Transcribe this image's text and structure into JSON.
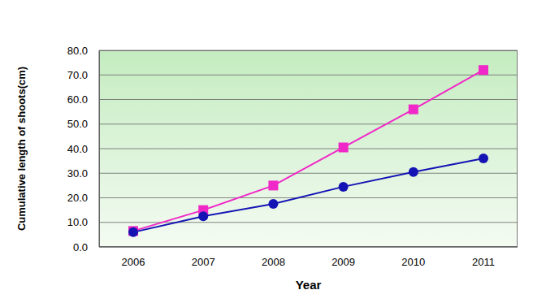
{
  "chart_data": {
    "type": "line",
    "x_label": "Year",
    "y_label": "Cumulative length of shoots(cm)",
    "categories": [
      "2006",
      "2007",
      "2008",
      "2009",
      "2010",
      "2011"
    ],
    "series": [
      {
        "color": "#f028c8",
        "marker": "square",
        "values": [
          6.5,
          15.0,
          25.0,
          40.5,
          56.0,
          72.0
        ]
      },
      {
        "color": "#1414b4",
        "marker": "circle",
        "values": [
          6.0,
          12.5,
          17.5,
          24.5,
          30.5,
          36.0
        ]
      }
    ],
    "ylim": [
      0,
      80
    ],
    "yticks": [
      {
        "value": 0,
        "label": "0.0"
      },
      {
        "value": 10,
        "label": "10.0"
      },
      {
        "value": 20,
        "label": "20.0"
      },
      {
        "value": 30,
        "label": "30.0"
      },
      {
        "value": 40,
        "label": "40.0"
      },
      {
        "value": 50,
        "label": "50.0"
      },
      {
        "value": 60,
        "label": "60.0"
      },
      {
        "value": 70,
        "label": "70.0"
      },
      {
        "value": 80,
        "label": "80.0"
      }
    ],
    "grid": true
  }
}
